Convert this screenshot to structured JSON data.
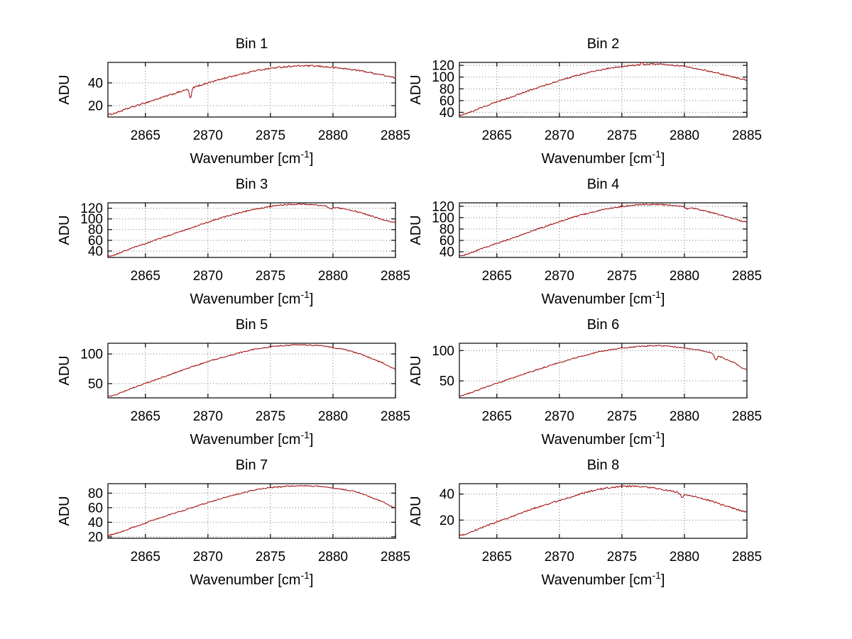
{
  "page": {
    "background": "#ffffff"
  },
  "chart_data": {
    "type": "line",
    "layout": {
      "rows": 4,
      "cols": 2,
      "grid": "dotted",
      "legend": "none"
    },
    "xlabel": "Wavenumber [cm⁻¹]",
    "ylabel": "ADU",
    "x_ticks": [
      2865,
      2870,
      2875,
      2880,
      2885
    ],
    "xlim": [
      2862,
      2885
    ],
    "line_color": "#990000",
    "subplots": [
      {
        "title": "Bin 1",
        "ylim": [
          10,
          58
        ],
        "y_ticks": [
          20,
          40
        ],
        "x": [
          2862,
          2864,
          2866,
          2868,
          2870,
          2872,
          2874,
          2876,
          2878,
          2880,
          2882,
          2884,
          2885
        ],
        "values": [
          12,
          19,
          26,
          33,
          40,
          46,
          51,
          54,
          55,
          53.5,
          51,
          47,
          44.5
        ],
        "noise": 0.7,
        "anomalies": [
          {
            "x": 2868.6,
            "amp": -9,
            "width": 0.12
          }
        ]
      },
      {
        "title": "Bin 2",
        "ylim": [
          32,
          125
        ],
        "y_ticks": [
          40,
          60,
          80,
          100,
          120
        ],
        "x": [
          2862,
          2864,
          2866,
          2868,
          2870,
          2872,
          2874,
          2876,
          2878,
          2880,
          2882,
          2884,
          2885
        ],
        "values": [
          35,
          50,
          65,
          80,
          94,
          106,
          115,
          120,
          122,
          118,
          110,
          100,
          95
        ],
        "noise": 1.2,
        "anomalies": [
          {
            "x": 2876.6,
            "amp": 7,
            "width": 0.08
          }
        ]
      },
      {
        "title": "Bin 3",
        "ylim": [
          28,
          130
        ],
        "y_ticks": [
          40,
          60,
          80,
          100,
          120
        ],
        "x": [
          2862,
          2864,
          2866,
          2868,
          2870,
          2872,
          2874,
          2876,
          2878,
          2880,
          2882,
          2884,
          2885
        ],
        "values": [
          30,
          46,
          62,
          78,
          94,
          108,
          119,
          126,
          127,
          122,
          113,
          99,
          93
        ],
        "noise": 1.2,
        "anomalies": [
          {
            "x": 2879.8,
            "amp": -4,
            "width": 0.2
          }
        ]
      },
      {
        "title": "Bin 4",
        "ylim": [
          30,
          126
        ],
        "y_ticks": [
          40,
          60,
          80,
          100,
          120
        ],
        "x": [
          2862,
          2864,
          2866,
          2868,
          2870,
          2872,
          2874,
          2876,
          2878,
          2880,
          2882,
          2884,
          2885
        ],
        "values": [
          32,
          47,
          62,
          78,
          93,
          106,
          116,
          122,
          123,
          119,
          110,
          98,
          92
        ],
        "noise": 1.2,
        "anomalies": [
          {
            "x": 2880.2,
            "amp": -3,
            "width": 0.2
          }
        ]
      },
      {
        "title": "Bin 5",
        "ylim": [
          26,
          118
        ],
        "y_ticks": [
          50,
          100
        ],
        "x": [
          2862,
          2864,
          2866,
          2868,
          2870,
          2872,
          2874,
          2876,
          2878,
          2880,
          2882,
          2884,
          2885
        ],
        "values": [
          28,
          43,
          58,
          73,
          87,
          99,
          109,
          114,
          115,
          111,
          101,
          85,
          75
        ],
        "noise": 1.0,
        "anomalies": []
      },
      {
        "title": "Bin 6",
        "ylim": [
          22,
          112
        ],
        "y_ticks": [
          50,
          100
        ],
        "x": [
          2862,
          2864,
          2866,
          2868,
          2870,
          2872,
          2874,
          2876,
          2878,
          2880,
          2882,
          2884,
          2885
        ],
        "values": [
          25,
          39,
          53,
          67,
          80,
          92,
          101,
          106,
          108,
          104,
          97,
          80,
          68
        ],
        "noise": 1.0,
        "anomalies": [
          {
            "x": 2882.5,
            "amp": -9,
            "width": 0.15
          }
        ]
      },
      {
        "title": "Bin 7",
        "ylim": [
          18,
          93
        ],
        "y_ticks": [
          20,
          40,
          60,
          80
        ],
        "x": [
          2862,
          2864,
          2866,
          2868,
          2870,
          2872,
          2874,
          2876,
          2878,
          2880,
          2882,
          2884,
          2885
        ],
        "values": [
          22,
          33,
          45,
          56,
          67,
          77,
          85,
          89,
          90,
          87,
          81,
          68,
          60
        ],
        "noise": 0.8,
        "anomalies": []
      },
      {
        "title": "Bin 8",
        "ylim": [
          6,
          48
        ],
        "y_ticks": [
          20,
          40
        ],
        "x": [
          2862,
          2864,
          2866,
          2868,
          2870,
          2872,
          2874,
          2876,
          2878,
          2880,
          2882,
          2884,
          2885
        ],
        "values": [
          8,
          15,
          22,
          29,
          35,
          41,
          45,
          46,
          44,
          40,
          35,
          29,
          26
        ],
        "noise": 0.6,
        "anomalies": [
          {
            "x": 2879.8,
            "amp": -3,
            "width": 0.15
          }
        ]
      }
    ]
  }
}
